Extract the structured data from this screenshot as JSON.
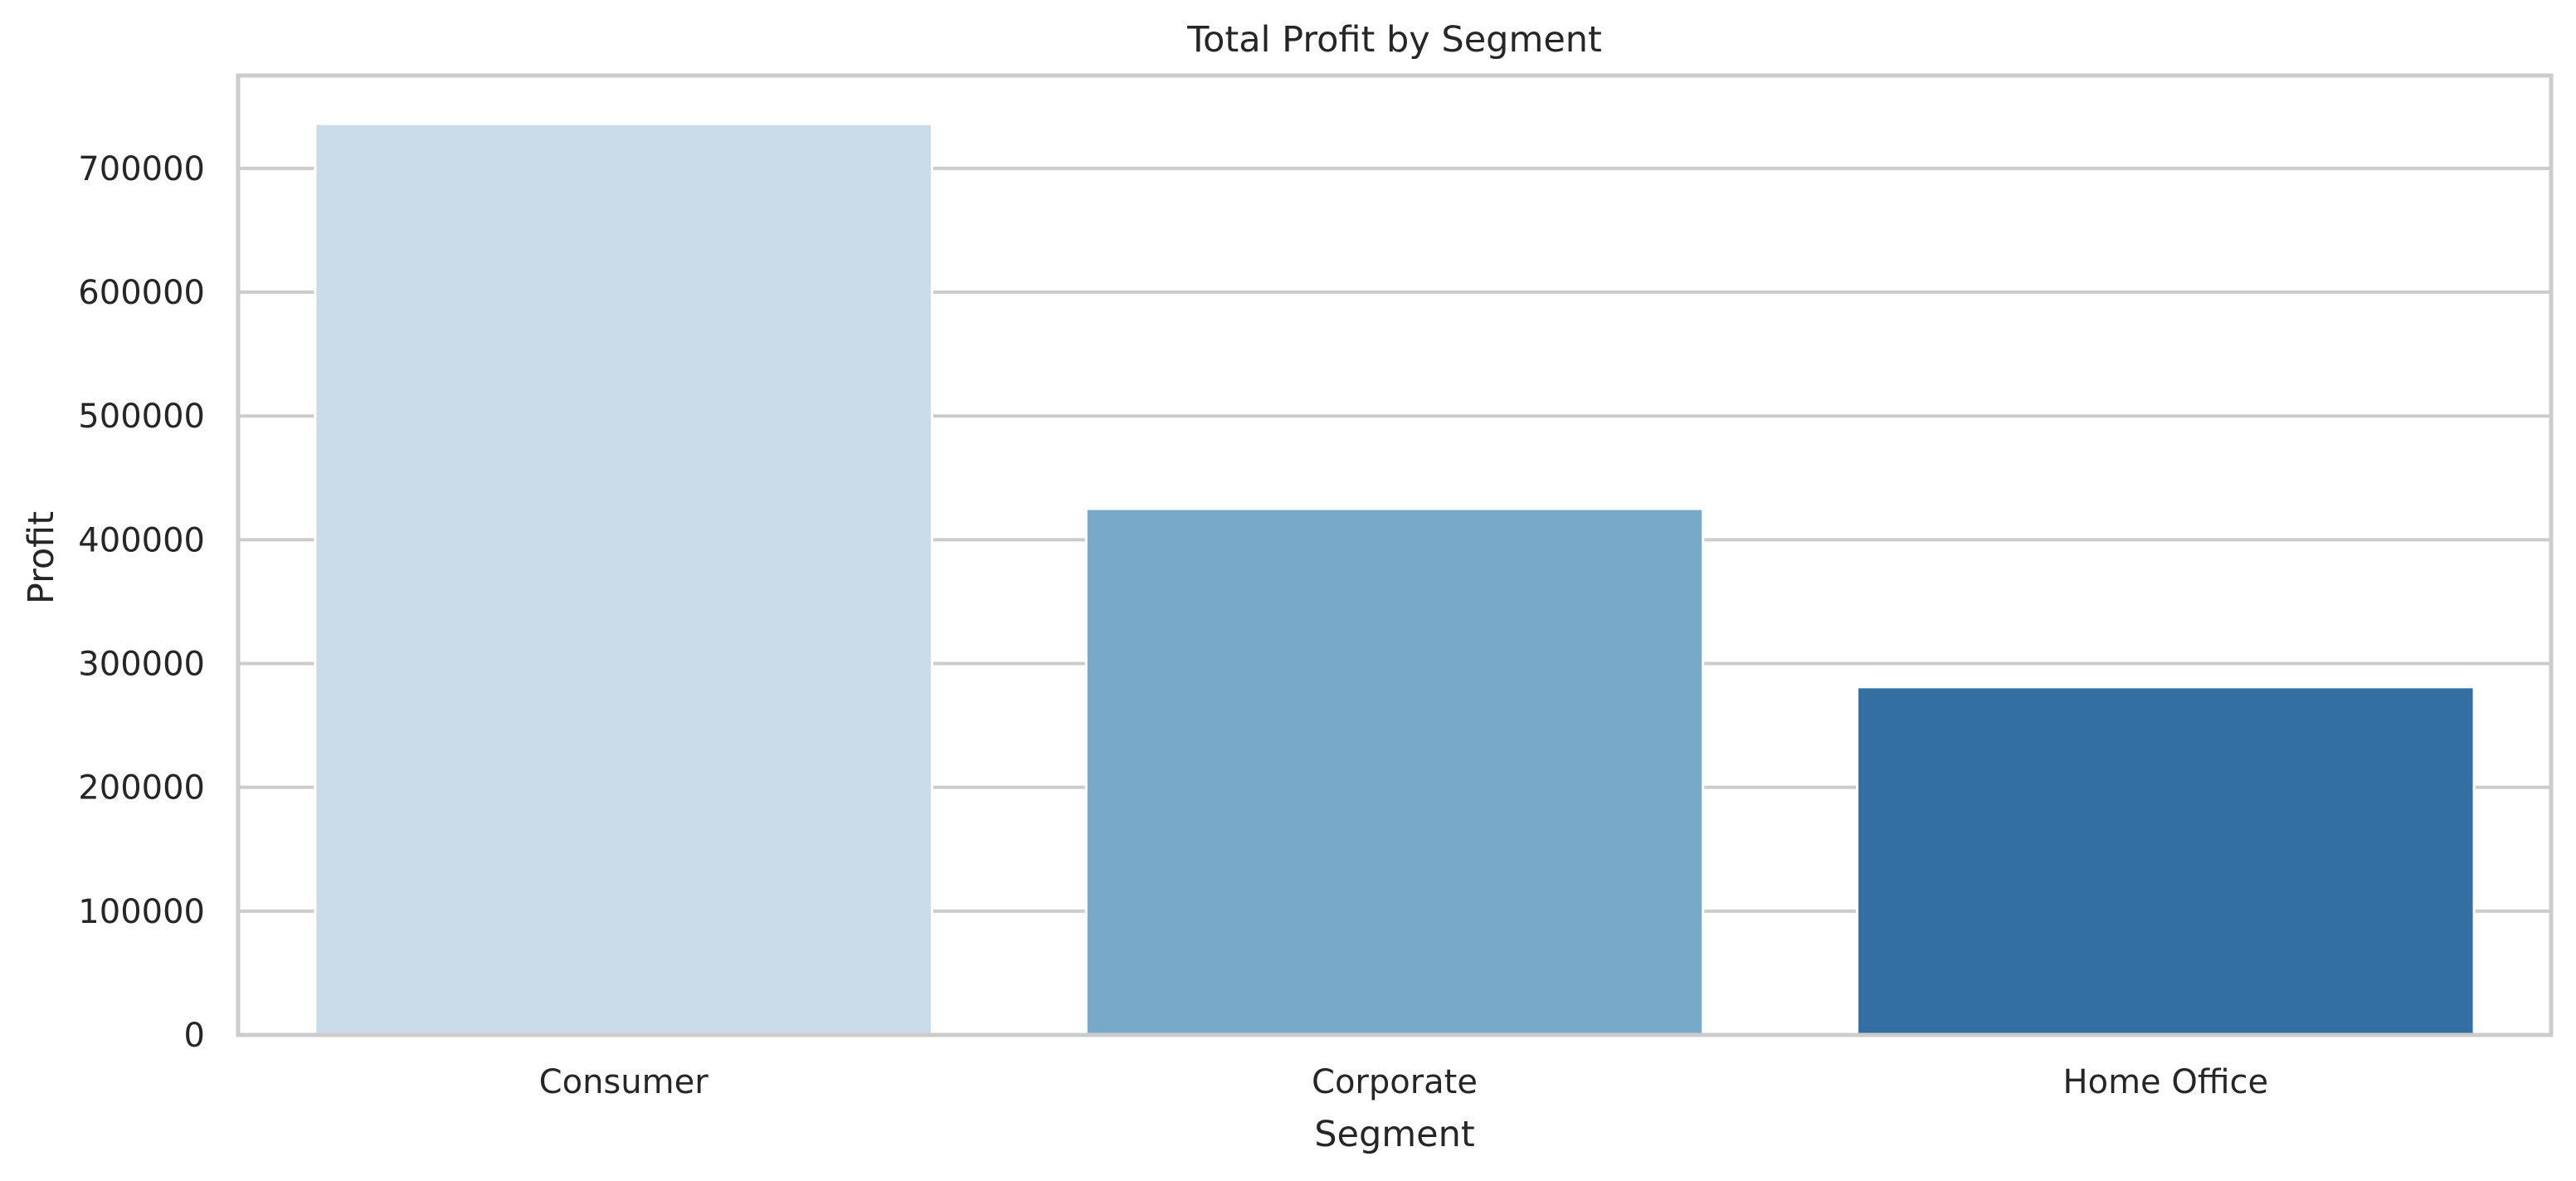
{
  "chart_data": {
    "type": "bar",
    "title": "Total Profit by Segment",
    "xlabel": "Segment",
    "ylabel": "Profit",
    "categories": [
      "Consumer",
      "Corporate",
      "Home Office"
    ],
    "values": [
      736000,
      425000,
      281000
    ],
    "colors": [
      "#cadbea",
      "#78a9c9",
      "#336fa3"
    ],
    "ylim": [
      0,
      775000
    ],
    "yticks": [
      0,
      100000,
      200000,
      300000,
      400000,
      500000,
      600000,
      700000
    ],
    "grid": true,
    "legend": "none"
  }
}
